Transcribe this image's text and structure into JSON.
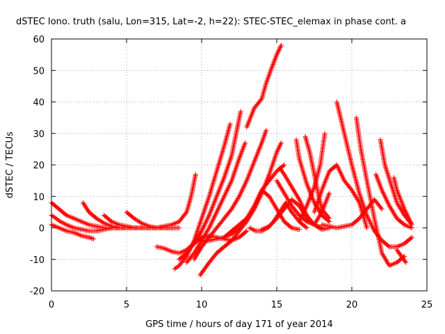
{
  "chart_data": {
    "type": "scatter",
    "title": "dSTEC Iono. truth (salu, Lon=315, Lat=-2, h=22): STEC-STEC_elemax in phase cont. a",
    "xlabel": "GPS time / hours of day 171 of year 2014",
    "ylabel": "dSTEC  / TECUs",
    "xlim": [
      0,
      25
    ],
    "ylim": [
      -20,
      60
    ],
    "xticks": [
      0,
      5,
      10,
      15,
      20,
      25
    ],
    "yticks": [
      -20,
      -10,
      0,
      10,
      20,
      30,
      40,
      50,
      60
    ],
    "grid": true,
    "marker": "plus",
    "color": "#ff0000",
    "series": [
      {
        "x": [
          0.0,
          0.5,
          1.0,
          1.5,
          2.0,
          2.5,
          3.0,
          3.5,
          4.0,
          4.5,
          5.0,
          5.5,
          6.0,
          6.5,
          7.0,
          7.5,
          8.0,
          8.5,
          9.0,
          9.3,
          9.6
        ],
        "y": [
          8,
          6,
          4,
          3,
          2,
          1,
          0.5,
          0,
          0,
          0,
          0,
          0,
          0,
          0,
          0,
          0.5,
          1,
          2,
          5,
          10,
          17
        ]
      },
      {
        "x": [
          0.0,
          0.3,
          0.6,
          1.0,
          1.5,
          2.0,
          2.5,
          3.0,
          3.5,
          4.0,
          4.5,
          5.0,
          5.5,
          6.0
        ],
        "y": [
          4,
          3,
          2,
          1,
          0,
          -0.5,
          -1,
          -1,
          -0.5,
          0,
          0,
          0,
          0,
          0
        ]
      },
      {
        "x": [
          0.0,
          0.5,
          1.0,
          1.5,
          2.0,
          2.5,
          2.8
        ],
        "y": [
          1,
          0,
          -1,
          -1.5,
          -2.5,
          -3,
          -3.5
        ]
      },
      {
        "x": [
          2.1,
          2.5,
          3.0,
          3.5,
          4.0,
          4.5,
          5.0
        ],
        "y": [
          8,
          5,
          3,
          1.5,
          0.5,
          0,
          0
        ]
      },
      {
        "x": [
          3.5,
          4.0,
          4.5,
          5.0,
          5.5,
          6.0,
          6.5,
          7.0,
          7.5,
          8.0,
          8.5
        ],
        "y": [
          4,
          2,
          1,
          0.5,
          0,
          0,
          0,
          0,
          0,
          0,
          0
        ]
      },
      {
        "x": [
          5.0,
          5.5,
          6.0,
          6.5,
          7.0,
          7.5,
          8.0
        ],
        "y": [
          5,
          3,
          1.5,
          0.5,
          0,
          0,
          0
        ]
      },
      {
        "x": [
          7.0,
          7.5,
          8.0,
          8.5,
          9.0,
          9.5,
          10.0,
          10.5,
          11.0,
          11.5,
          12.0,
          12.5,
          13.0
        ],
        "y": [
          -6,
          -6.5,
          -7.5,
          -8,
          -7,
          -5,
          -3,
          -2.5,
          -3,
          -3.5,
          -4,
          -3,
          -1
        ]
      },
      {
        "x": [
          8.2,
          8.5,
          9.0,
          9.5,
          10.0,
          10.5,
          11.0,
          11.5,
          11.9
        ],
        "y": [
          -13,
          -12,
          -9,
          -4,
          3,
          10,
          18,
          26,
          33
        ]
      },
      {
        "x": [
          8.5,
          9.0,
          9.5,
          10.0,
          10.5,
          11.0,
          11.5,
          12.0,
          12.3,
          12.6
        ],
        "y": [
          -10,
          -8,
          -5,
          -1,
          4,
          10,
          16,
          23,
          30,
          37
        ]
      },
      {
        "x": [
          9.0,
          9.5,
          10.0,
          10.5,
          11.0,
          11.5,
          12.0,
          12.5,
          12.9
        ],
        "y": [
          -11,
          -8,
          -4,
          0,
          5,
          10,
          15,
          22,
          27
        ]
      },
      {
        "x": [
          9.5,
          10.0,
          10.5,
          11.0,
          11.5,
          12.0,
          12.5,
          13.0,
          13.5,
          14.0,
          14.3
        ],
        "y": [
          -10,
          -6,
          -3,
          0,
          3,
          6,
          10,
          15,
          21,
          27,
          31
        ]
      },
      {
        "x": [
          9.9,
          10.5,
          11.0,
          11.5,
          12.0,
          12.5,
          13.0,
          13.5,
          14.0,
          14.5,
          15.0,
          15.3
        ],
        "y": [
          -15,
          -11,
          -8,
          -6,
          -4,
          -1,
          2,
          6,
          11,
          17,
          24,
          27
        ]
      },
      {
        "x": [
          10.0,
          10.5,
          11.0,
          11.5,
          12.0,
          12.5,
          13.0,
          13.5,
          14.0,
          14.5,
          15.0,
          15.5
        ],
        "y": [
          -4,
          -4,
          -3.5,
          -3,
          -1,
          1,
          3,
          6,
          12,
          15,
          18,
          20
        ]
      },
      {
        "x": [
          11.5,
          12.0,
          12.5,
          13.0,
          13.5,
          14.0,
          14.5,
          15.0,
          15.5,
          16.0,
          16.5
        ],
        "y": [
          -3,
          -2,
          0,
          3,
          7,
          12,
          10,
          6,
          2,
          0,
          -0.5
        ]
      },
      {
        "x": [
          13.0,
          13.5,
          14.0,
          14.3,
          14.6,
          15.0,
          15.3
        ],
        "y": [
          32,
          38,
          41,
          46,
          50,
          55,
          58
        ]
      },
      {
        "x": [
          13.2,
          13.6,
          14.0,
          14.4,
          14.8,
          15.2,
          15.6,
          16.0,
          16.5,
          17.0
        ],
        "y": [
          0,
          -1,
          -1,
          0,
          2,
          5,
          8,
          5,
          2,
          0
        ]
      },
      {
        "x": [
          15.0,
          15.5,
          16.0,
          16.5,
          17.0,
          17.5,
          18.0,
          18.5
        ],
        "y": [
          15,
          11,
          7,
          4,
          2,
          1,
          5,
          11
        ]
      },
      {
        "x": [
          15.2,
          15.5,
          16.0,
          16.5,
          17.0,
          17.5,
          18.0,
          18.5
        ],
        "y": [
          19,
          17,
          13,
          9,
          4,
          1,
          -0.5,
          0
        ]
      },
      {
        "x": [
          16.3,
          16.5,
          17.0,
          17.5,
          18.0,
          18.5
        ],
        "y": [
          28,
          22,
          14,
          8,
          4,
          2
        ]
      },
      {
        "x": [
          16.9,
          17.2,
          17.5,
          17.8,
          18.0,
          18.5
        ],
        "y": [
          29,
          24,
          17,
          10,
          6,
          3
        ]
      },
      {
        "x": [
          14.0,
          14.5,
          15.0,
          15.5,
          16.0,
          16.5,
          17.0,
          17.5,
          18.0
        ],
        "y": [
          -0.5,
          0.5,
          3,
          6,
          9,
          7,
          3,
          1,
          0
        ]
      },
      {
        "x": [
          16.5,
          17.0,
          17.5,
          17.9,
          18.2
        ],
        "y": [
          2,
          7,
          13,
          20,
          30
        ]
      },
      {
        "x": [
          17.5,
          18.0,
          18.5,
          19.0,
          19.5,
          20.0,
          20.5,
          21.0
        ],
        "y": [
          5,
          12,
          18,
          20,
          15,
          12,
          8,
          0
        ]
      },
      {
        "x": [
          18.0,
          18.5,
          19.0,
          19.5,
          20.0,
          20.5,
          21.0,
          21.5,
          22.0
        ],
        "y": [
          1,
          0.5,
          0,
          0.5,
          1,
          3,
          6,
          9,
          6
        ]
      },
      {
        "x": [
          19.0,
          19.5,
          20.0,
          20.5,
          21.0,
          21.5,
          22.0,
          22.5,
          23.0,
          23.5,
          24.0
        ],
        "y": [
          40,
          30,
          20,
          11,
          4,
          -1,
          -4,
          -6,
          -6,
          -5,
          -3
        ]
      },
      {
        "x": [
          20.3,
          20.6,
          21.0,
          21.5,
          22.0,
          22.5,
          23.0,
          23.5
        ],
        "y": [
          35,
          25,
          15,
          3,
          -8,
          -12,
          -11,
          -9
        ]
      },
      {
        "x": [
          21.6,
          22.0,
          22.5,
          23.0,
          23.5,
          24.0
        ],
        "y": [
          17,
          12,
          7,
          3,
          1,
          0
        ]
      },
      {
        "x": [
          21.9,
          22.2,
          22.6,
          23.0,
          23.5,
          24.0
        ],
        "y": [
          28,
          20,
          14,
          8,
          4,
          1
        ]
      },
      {
        "x": [
          22.8,
          23.0,
          23.5,
          24.0
        ],
        "y": [
          16,
          12,
          6,
          1
        ]
      },
      {
        "x": [
          23.0,
          23.3,
          23.6
        ],
        "y": [
          -7,
          -9,
          -11
        ]
      }
    ]
  }
}
